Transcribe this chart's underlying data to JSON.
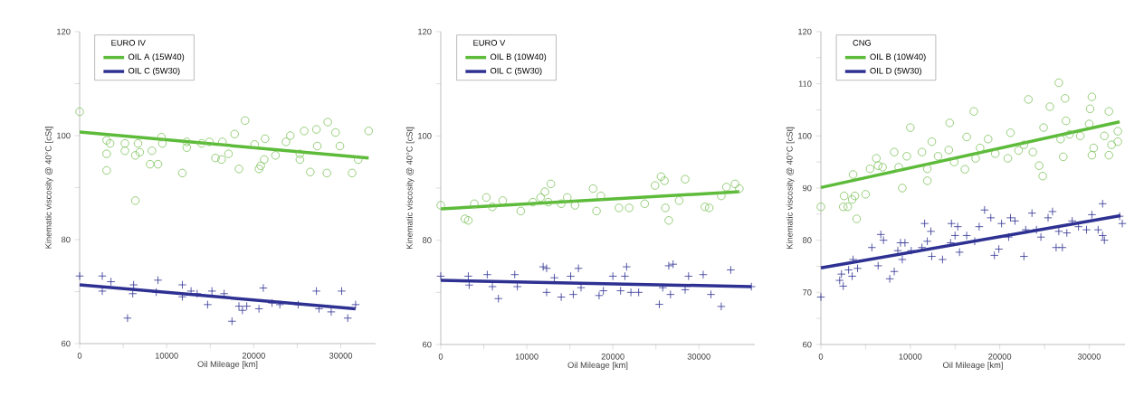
{
  "chart_data": [
    {
      "type": "scatter",
      "legend_title": "EURO IV",
      "xlabel": "Oil Mileage [km]",
      "ylabel": "Kinematic viscosity @ 40°C [cSt]",
      "legend": "top left",
      "xlim": [
        0,
        34000
      ],
      "ylim": [
        60,
        120
      ],
      "xticks": [
        0,
        {
          "value": 5000,
          "label": null
        },
        10000,
        {
          "value": 15000,
          "label": null
        },
        20000,
        {
          "value": 25000,
          "label": null
        },
        30000
      ],
      "yticks": [
        60,
        {
          "value": 70,
          "label": null
        },
        80,
        {
          "value": 90,
          "label": null
        },
        100,
        {
          "value": 110,
          "label": null
        },
        120
      ],
      "series": [
        {
          "type": "scatter",
          "color": "#7cc25a",
          "marker": "circle",
          "x": [
            0,
            3100,
            3100,
            3500,
            3100,
            5200,
            5200,
            6400,
            6700,
            6400,
            6900,
            8300,
            8100,
            9000,
            9400,
            9500,
            11800,
            12300,
            12300,
            14000,
            14900,
            15600,
            16300,
            16400,
            17100,
            17800,
            18300,
            19000,
            20100,
            20600,
            20800,
            21200,
            21300,
            22500,
            23700,
            24200,
            25300,
            25300,
            25800,
            26500,
            27200,
            27300,
            28400,
            28500,
            29400,
            29900,
            31300,
            32000,
            33200
          ],
          "values": [
            104.6,
            96.5,
            99.1,
            98.5,
            93.3,
            98.5,
            97.1,
            87.5,
            98.5,
            96.2,
            96.8,
            97.1,
            94.5,
            94.5,
            99.7,
            98.5,
            92.8,
            98.8,
            97.7,
            98.5,
            98.8,
            95.7,
            95.4,
            98.8,
            96.5,
            100.3,
            93.6,
            102.9,
            98.3,
            93.6,
            94.2,
            95.4,
            99.4,
            96.2,
            98.8,
            100.0,
            96.5,
            95.4,
            100.9,
            93.0,
            101.2,
            98.0,
            92.8,
            102.6,
            100.6,
            98.0,
            92.8,
            95.4,
            100.9
          ]
        },
        {
          "type": "scatter",
          "color": "#2e3192",
          "marker": "cross",
          "x": [
            0,
            2600,
            2600,
            3600,
            5500,
            6200,
            6100,
            8800,
            9000,
            11800,
            11800,
            12800,
            13500,
            14700,
            15200,
            16600,
            17500,
            18300,
            18700,
            19200,
            20600,
            21100,
            22100,
            23000,
            25100,
            27200,
            27500,
            28900,
            30100,
            30800,
            31700
          ],
          "values": [
            73.0,
            73.0,
            70.1,
            71.9,
            64.9,
            71.3,
            69.6,
            69.9,
            72.2,
            71.3,
            69.0,
            70.1,
            69.6,
            67.5,
            70.1,
            69.6,
            64.3,
            67.2,
            66.4,
            67.2,
            66.7,
            70.7,
            67.8,
            67.5,
            67.5,
            70.1,
            66.7,
            66.1,
            70.1,
            64.9,
            67.5
          ]
        },
        {
          "type": "line",
          "name": "OIL A (15W40)",
          "color": "#5dbb3a",
          "x": [
            0,
            33200
          ],
          "values": [
            100.7,
            95.7
          ]
        },
        {
          "type": "line",
          "name": "OIL C (5W30)",
          "color": "#2e3192",
          "x": [
            0,
            31700
          ],
          "values": [
            71.3,
            66.7
          ]
        }
      ]
    },
    {
      "type": "scatter",
      "legend_title": "EURO V",
      "xlabel": "Oil Mileage [km]",
      "ylabel": "Kinematic viscosity @ 40°C [cSt]",
      "legend": "top left",
      "xlim": [
        0,
        36500
      ],
      "ylim": [
        60,
        120
      ],
      "xticks": [
        0,
        {
          "value": 5000,
          "label": null
        },
        10000,
        {
          "value": 15000,
          "label": null
        },
        20000,
        {
          "value": 25000,
          "label": null
        },
        30000
      ],
      "yticks": [
        60,
        {
          "value": 70,
          "label": null
        },
        80,
        {
          "value": 90,
          "label": null
        },
        100,
        {
          "value": 110,
          "label": null
        },
        120
      ],
      "series": [
        {
          "type": "scatter",
          "color": "#7cc25a",
          "marker": "circle",
          "x": [
            0,
            2800,
            3200,
            3900,
            5300,
            6000,
            7200,
            9300,
            10700,
            11600,
            12100,
            12800,
            12500,
            14000,
            14700,
            15600,
            17700,
            18100,
            18600,
            20700,
            21900,
            23700,
            24900,
            25600,
            26000,
            26100,
            26500,
            27700,
            28400,
            30700,
            31200,
            32600,
            33200,
            34200,
            34700
          ],
          "values": [
            86.7,
            84.1,
            83.8,
            87.0,
            88.2,
            86.4,
            87.6,
            85.6,
            87.3,
            88.2,
            89.3,
            90.8,
            87.3,
            87.0,
            88.2,
            86.7,
            89.9,
            85.6,
            88.5,
            86.2,
            86.2,
            87.0,
            90.5,
            92.2,
            91.4,
            86.2,
            83.8,
            87.6,
            91.7,
            86.4,
            86.2,
            88.5,
            90.2,
            90.8,
            89.9
          ]
        },
        {
          "type": "scatter",
          "color": "#2e3192",
          "marker": "cross",
          "x": [
            0,
            3200,
            3300,
            5400,
            6000,
            6700,
            8600,
            8900,
            11900,
            12300,
            12300,
            13200,
            14000,
            15100,
            15400,
            16000,
            16300,
            18400,
            18900,
            20000,
            20900,
            21400,
            21600,
            22100,
            23000,
            25400,
            25800,
            26500,
            27000,
            26700,
            28400,
            28800,
            30500,
            31400,
            32600,
            33700,
            36100
          ],
          "values": [
            73.1,
            73.1,
            71.4,
            73.4,
            71.1,
            68.8,
            73.4,
            71.1,
            74.9,
            74.6,
            70.0,
            72.8,
            69.1,
            73.1,
            69.6,
            74.6,
            70.9,
            69.4,
            70.3,
            73.1,
            70.3,
            73.1,
            74.9,
            70.0,
            70.0,
            67.7,
            70.9,
            75.1,
            75.4,
            69.6,
            70.5,
            73.1,
            73.4,
            69.6,
            67.3,
            74.3,
            71.1
          ]
        },
        {
          "type": "line",
          "name": "OIL B (10W40)",
          "color": "#5dbb3a",
          "x": [
            0,
            34700
          ],
          "values": [
            86.0,
            89.3
          ]
        },
        {
          "type": "line",
          "name": "OIL C (5W30)",
          "color": "#2e3192",
          "x": [
            0,
            36100
          ],
          "values": [
            72.3,
            71.1
          ]
        }
      ]
    },
    {
      "type": "scatter",
      "legend_title": "CNG",
      "xlabel": "Oil Mileage [km]",
      "ylabel": "Kinematic viscosity @ 40°C [cSt]",
      "legend": "top left",
      "xlim": [
        0,
        34000
      ],
      "ylim": [
        60,
        120
      ],
      "xticks": [
        0,
        {
          "value": 5000,
          "label": null
        },
        10000,
        {
          "value": 15000,
          "label": null
        },
        20000,
        {
          "value": 25000,
          "label": null
        },
        30000
      ],
      "yticks": [
        60,
        {
          "value": 65,
          "label": null
        },
        70,
        {
          "value": 75,
          "label": null
        },
        80,
        {
          "value": 85,
          "label": null
        },
        90,
        {
          "value": 95,
          "label": null
        },
        100,
        {
          "value": 105,
          "label": null
        },
        110,
        {
          "value": 115,
          "label": null
        },
        120
      ],
      "series": [
        {
          "type": "scatter",
          "color": "#7cc25a",
          "marker": "circle",
          "x": [
            0,
            2500,
            2600,
            3000,
            3500,
            3800,
            4000,
            3600,
            5000,
            5500,
            6200,
            6400,
            6900,
            8200,
            8700,
            9100,
            9600,
            10000,
            11300,
            11900,
            11900,
            12400,
            13100,
            14300,
            14400,
            14900,
            16100,
            16300,
            17100,
            17300,
            17800,
            18700,
            19500,
            20900,
            21200,
            22100,
            22700,
            23200,
            23700,
            24400,
            24800,
            24900,
            25600,
            26600,
            26800,
            27100,
            27300,
            27400,
            27800,
            29000,
            30000,
            30100,
            30300,
            30300,
            30500,
            31700,
            32200,
            32200,
            32500,
            33200,
            33200
          ],
          "values": [
            86.4,
            86.4,
            88.5,
            86.4,
            87.8,
            88.5,
            84.1,
            92.6,
            88.8,
            93.7,
            95.7,
            94.3,
            94.0,
            96.9,
            94.0,
            90.0,
            96.1,
            101.6,
            96.9,
            93.7,
            91.4,
            98.9,
            96.1,
            97.3,
            102.5,
            95.0,
            93.6,
            99.8,
            104.7,
            95.7,
            97.7,
            99.4,
            96.6,
            95.7,
            100.6,
            97.2,
            98.3,
            107.0,
            96.9,
            94.3,
            92.3,
            101.6,
            105.6,
            110.2,
            99.4,
            96.0,
            107.2,
            102.9,
            100.3,
            100.0,
            102.3,
            105.2,
            107.5,
            96.3,
            97.7,
            100.0,
            104.7,
            96.3,
            98.3,
            98.9,
            100.9
          ]
        },
        {
          "type": "scatter",
          "color": "#2e3192",
          "marker": "cross",
          "x": [
            0,
            2100,
            2300,
            2500,
            3100,
            3500,
            3600,
            4100,
            5700,
            6400,
            6700,
            7000,
            7700,
            8200,
            8600,
            8900,
            9400,
            9100,
            10100,
            11300,
            11600,
            11900,
            12300,
            12400,
            13600,
            14500,
            14600,
            15000,
            15300,
            15500,
            16300,
            17200,
            17700,
            18300,
            19000,
            19400,
            19900,
            20200,
            21000,
            21200,
            21700,
            22700,
            22900,
            23600,
            24100,
            24600,
            25400,
            25900,
            26300,
            26600,
            27000,
            27500,
            28100,
            28800,
            29700,
            30300,
            31000,
            31500,
            31500,
            31700,
            33400,
            33700
          ],
          "values": [
            69.1,
            72.3,
            73.5,
            71.2,
            74.3,
            73.1,
            76.3,
            74.6,
            78.6,
            75.1,
            81.1,
            80.0,
            72.6,
            74.0,
            78.0,
            79.5,
            79.5,
            76.3,
            78.0,
            78.6,
            83.2,
            79.8,
            81.7,
            76.9,
            76.3,
            79.5,
            83.2,
            80.9,
            82.6,
            77.7,
            80.9,
            79.8,
            82.6,
            85.8,
            84.3,
            77.1,
            78.3,
            83.2,
            80.6,
            84.3,
            83.7,
            76.9,
            82.0,
            85.2,
            82.0,
            80.6,
            84.3,
            85.5,
            78.6,
            81.7,
            78.6,
            81.4,
            83.7,
            82.6,
            82.0,
            84.9,
            82.0,
            87.0,
            80.9,
            80.0,
            84.6,
            83.2
          ]
        },
        {
          "type": "line",
          "name": "OIL B (10W40)",
          "color": "#5dbb3a",
          "x": [
            0,
            33400
          ],
          "values": [
            90.1,
            102.7
          ]
        },
        {
          "type": "line",
          "name": "OIL D (5W30)",
          "color": "#2e3192",
          "x": [
            0,
            33500
          ],
          "values": [
            74.7,
            84.7
          ]
        }
      ]
    }
  ]
}
